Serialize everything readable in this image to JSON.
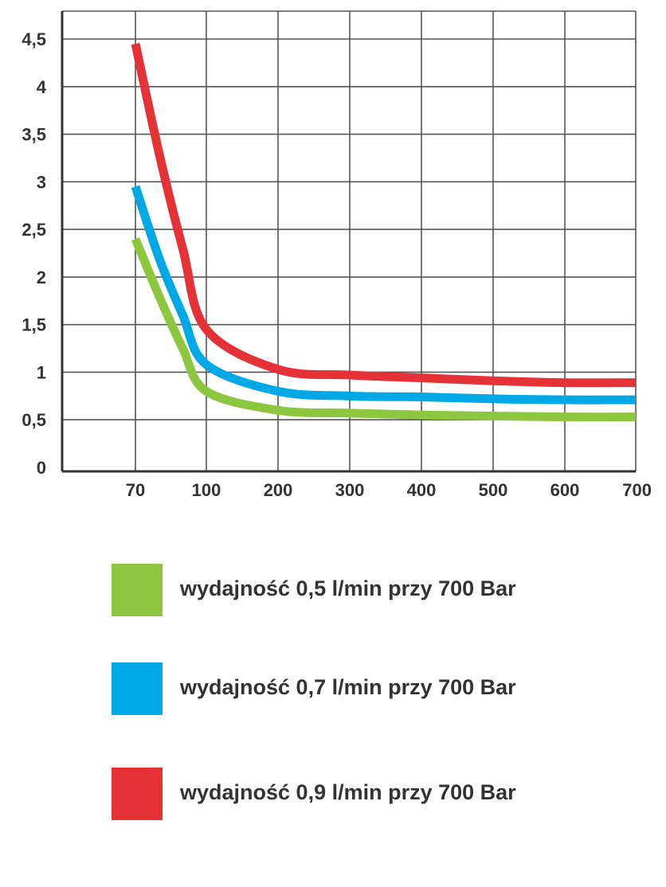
{
  "chart_data": {
    "type": "line",
    "title": "",
    "xlabel": "",
    "ylabel": "",
    "x_ticks": [
      "70",
      "100",
      "200",
      "300",
      "400",
      "500",
      "600",
      "700"
    ],
    "y_ticks": [
      "0",
      "0,5",
      "1",
      "1,5",
      "2",
      "2,5",
      "3",
      "3,5",
      "4",
      "4,5"
    ],
    "ylim": [
      0,
      5
    ],
    "grid": true,
    "legend_position": "bottom",
    "series": [
      {
        "name": "wydajność 0,5 l/min przy 700 Bar",
        "color": "#8dc63f",
        "x": [
          70,
          80,
          90,
          100,
          200,
          300,
          400,
          500,
          600,
          700
        ],
        "y": [
          2.4,
          1.8,
          1.25,
          0.8,
          0.6,
          0.57,
          0.55,
          0.54,
          0.53,
          0.53
        ]
      },
      {
        "name": "wydajność 0,7 l/min przy 700 Bar",
        "color": "#00a9e6",
        "x": [
          70,
          80,
          90,
          100,
          200,
          300,
          400,
          500,
          600,
          700
        ],
        "y": [
          2.95,
          2.2,
          1.6,
          1.08,
          0.8,
          0.75,
          0.74,
          0.72,
          0.71,
          0.71
        ]
      },
      {
        "name": "wydajność 0,9 l/min przy 700 Bar",
        "color": "#e43237",
        "x": [
          70,
          80,
          90,
          100,
          200,
          300,
          400,
          500,
          600,
          700
        ],
        "y": [
          4.45,
          3.3,
          2.3,
          1.45,
          1.03,
          0.97,
          0.94,
          0.91,
          0.89,
          0.89
        ]
      }
    ]
  }
}
